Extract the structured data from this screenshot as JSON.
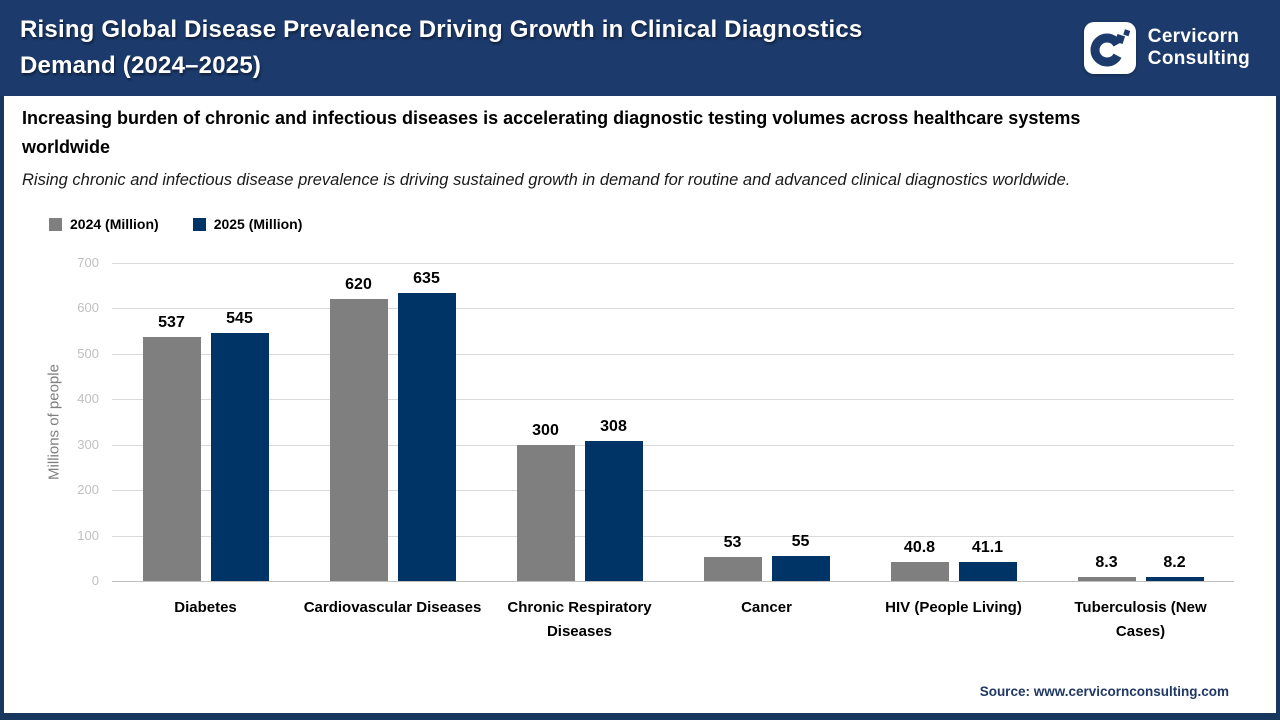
{
  "colors": {
    "header_navy": "#1C3A6B",
    "chrome_navy": "#17375E",
    "bar_gray": "#7F7F7F",
    "bar_navy": "#003366",
    "gridline": "#D9D9D9",
    "tick_text": "#BFBFBF",
    "axis_title_text": "#7F7F7F",
    "source_text": "#1F3864"
  },
  "header": {
    "title": "Rising Global Disease Prevalence Driving Growth in Clinical Diagnostics Demand (2024–2025)",
    "title_line1": "Rising Global Disease Prevalence Driving Growth in Clinical Diagnostics",
    "title_line2": "Demand (2024–2025)",
    "logo_line1": "Cervicorn",
    "logo_line2": "Consulting"
  },
  "headline": {
    "text": "Increasing burden of chronic and infectious diseases is accelerating diagnostic testing volumes across healthcare systems worldwide",
    "line1": "Increasing burden of chronic and infectious diseases is accelerating diagnostic testing volumes across healthcare systems",
    "line2": "worldwide"
  },
  "tagline": "Rising chronic and infectious disease prevalence is driving sustained growth in demand for routine and advanced clinical diagnostics worldwide.",
  "legend": [
    {
      "label": "2024 (Million)",
      "color": "#7F7F7F"
    },
    {
      "label": "2025 (Million)",
      "color": "#003366"
    }
  ],
  "chart_data": {
    "type": "bar",
    "title": "Rising Global Disease Prevalence Driving Growth in Clinical Diagnostics Demand (2024–2025)",
    "categories": [
      "Diabetes",
      "Cardiovascular Diseases",
      "Chronic Respiratory Diseases",
      "Cancer",
      "HIV (People Living)",
      "Tuberculosis (New Cases)"
    ],
    "category_lines": [
      [
        "Diabetes"
      ],
      [
        "Cardiovascular Diseases"
      ],
      [
        "Chronic Respiratory",
        "Diseases"
      ],
      [
        "Cancer"
      ],
      [
        "HIV (People Living)"
      ],
      [
        "Tuberculosis (New",
        "Cases)"
      ]
    ],
    "series": [
      {
        "name": "2024 (Million)",
        "color": "#7F7F7F",
        "values": [
          537,
          620,
          300,
          53,
          40.8,
          8.3
        ]
      },
      {
        "name": "2025 (Million)",
        "color": "#003366",
        "values": [
          545,
          635,
          308,
          55,
          41.1,
          8.2
        ]
      }
    ],
    "xlabel": "",
    "ylabel": "Millions of people",
    "ylim": [
      0,
      700
    ],
    "yticks": [
      0,
      100,
      200,
      300,
      400,
      500,
      600,
      700
    ],
    "grid": true,
    "legend_position": "top-left",
    "value_labels": true
  },
  "source": {
    "label": "Source: www.cervicornconsulting.com"
  }
}
